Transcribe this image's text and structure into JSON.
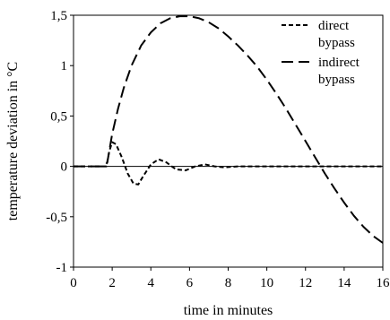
{
  "chart_data": {
    "type": "line",
    "title": "",
    "xlabel": "time in minutes",
    "ylabel": "temperature deviation in °C",
    "xlim": [
      0,
      16
    ],
    "ylim": [
      -1,
      1.5
    ],
    "x_ticks": [
      0,
      2,
      4,
      6,
      8,
      10,
      12,
      14,
      16
    ],
    "x_tick_labels": [
      "0",
      "2",
      "4",
      "6",
      "8",
      "10",
      "12",
      "14",
      "16"
    ],
    "y_ticks": [
      -1,
      -0.5,
      0,
      0.5,
      1,
      1.5
    ],
    "y_tick_labels": [
      "-1",
      "-0,5",
      "0",
      "0,5",
      "1",
      "1,5"
    ],
    "grid": false,
    "legend_position": "top-right",
    "series": [
      {
        "name_lines": [
          "direct",
          "bypass"
        ],
        "dash": "short",
        "points": [
          [
            0,
            0
          ],
          [
            1.5,
            0
          ],
          [
            1.7,
            0
          ],
          [
            1.85,
            0.15
          ],
          [
            2.0,
            0.24
          ],
          [
            2.2,
            0.22
          ],
          [
            2.5,
            0.09
          ],
          [
            2.8,
            -0.07
          ],
          [
            3.1,
            -0.17
          ],
          [
            3.35,
            -0.18
          ],
          [
            3.6,
            -0.1
          ],
          [
            4.0,
            0.02
          ],
          [
            4.4,
            0.07
          ],
          [
            4.8,
            0.04
          ],
          [
            5.3,
            -0.03
          ],
          [
            5.8,
            -0.04
          ],
          [
            6.3,
            0.0
          ],
          [
            6.8,
            0.02
          ],
          [
            7.3,
            0.0
          ],
          [
            7.8,
            -0.01
          ],
          [
            8.5,
            0.0
          ],
          [
            9.5,
            0.0
          ],
          [
            11,
            0.0
          ],
          [
            13,
            0.0
          ],
          [
            14.5,
            0.0
          ],
          [
            16,
            0.0
          ]
        ]
      },
      {
        "name_lines": [
          "indirect",
          "bypass"
        ],
        "dash": "long",
        "points": [
          [
            0,
            0
          ],
          [
            1.6,
            0
          ],
          [
            1.75,
            0.04
          ],
          [
            2.0,
            0.32
          ],
          [
            2.3,
            0.57
          ],
          [
            2.6,
            0.78
          ],
          [
            3.0,
            1.0
          ],
          [
            3.5,
            1.2
          ],
          [
            4.0,
            1.33
          ],
          [
            4.5,
            1.42
          ],
          [
            5.0,
            1.47
          ],
          [
            5.5,
            1.49
          ],
          [
            6.0,
            1.49
          ],
          [
            6.5,
            1.47
          ],
          [
            7.0,
            1.43
          ],
          [
            7.5,
            1.37
          ],
          [
            8.0,
            1.29
          ],
          [
            8.5,
            1.2
          ],
          [
            9.0,
            1.1
          ],
          [
            9.5,
            0.99
          ],
          [
            10.0,
            0.86
          ],
          [
            10.5,
            0.72
          ],
          [
            11.0,
            0.57
          ],
          [
            11.5,
            0.41
          ],
          [
            12.0,
            0.25
          ],
          [
            12.5,
            0.09
          ],
          [
            13.0,
            -0.07
          ],
          [
            13.5,
            -0.22
          ],
          [
            14.0,
            -0.36
          ],
          [
            14.5,
            -0.49
          ],
          [
            15.0,
            -0.6
          ],
          [
            15.5,
            -0.69
          ],
          [
            16.0,
            -0.76
          ]
        ]
      }
    ]
  }
}
